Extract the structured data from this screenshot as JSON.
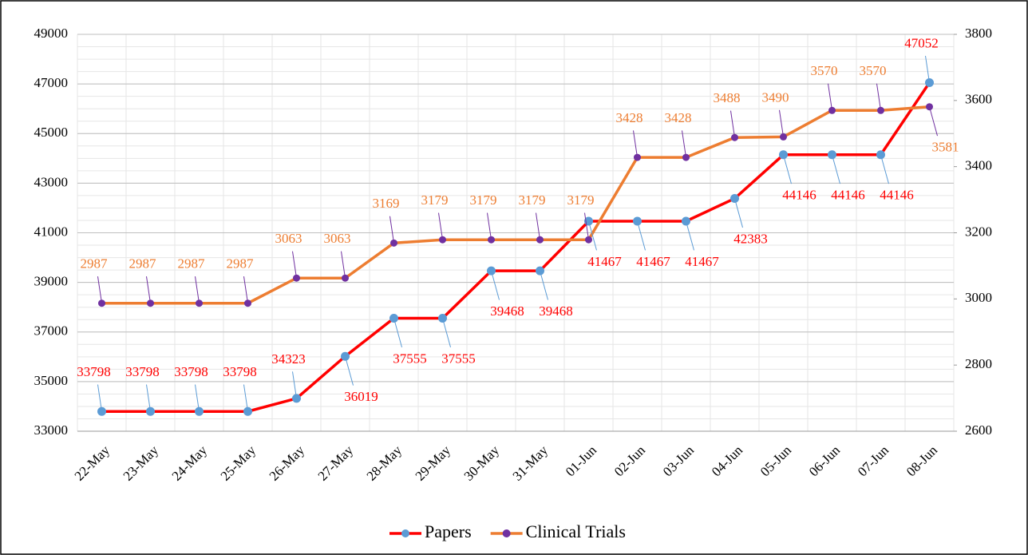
{
  "chart_data": {
    "type": "line",
    "categories": [
      "22-May",
      "23-May",
      "24-May",
      "25-May",
      "26-May",
      "27-May",
      "28-May",
      "29-May",
      "30-May",
      "31-May",
      "01-Jun",
      "02-Jun",
      "03-Jun",
      "04-Jun",
      "05-Jun",
      "06-Jun",
      "07-Jun",
      "08-Jun"
    ],
    "series": [
      {
        "name": "Papers",
        "color": "#ff0000",
        "marker_color": "#5b9bd5",
        "values": [
          33798,
          33798,
          33798,
          33798,
          34323,
          36019,
          37555,
          37555,
          39468,
          39468,
          41467,
          41467,
          41467,
          42383,
          44146,
          44146,
          44146,
          47052
        ]
      },
      {
        "name": "Clinical Trials",
        "color": "#ed7d31",
        "marker_color": "#7030a0",
        "axis": "y2",
        "values": [
          2987,
          2987,
          2987,
          2987,
          3063,
          3063,
          3169,
          3179,
          3179,
          3179,
          3179,
          3428,
          3428,
          3488,
          3490,
          3570,
          3570,
          3581
        ]
      }
    ],
    "ylim": [
      33000,
      49000
    ],
    "yticks": [
      33000,
      35000,
      37000,
      39000,
      41000,
      43000,
      45000,
      47000,
      49000
    ],
    "y2lim": [
      2600,
      3800
    ],
    "y2ticks": [
      2600,
      2800,
      3000,
      3200,
      3400,
      3600,
      3800
    ],
    "grid": true,
    "legend": "bottom"
  }
}
